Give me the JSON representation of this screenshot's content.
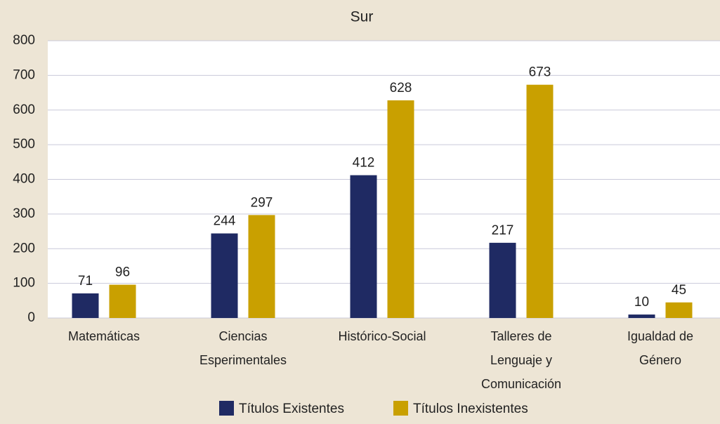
{
  "chart_data": {
    "type": "bar",
    "title": "Sur",
    "categories": [
      "Matemáticas",
      "Ciencias Esperimentales",
      "Histórico-Social",
      "Talleres de Lenguaje y Comunicación",
      "Igualdad de Género"
    ],
    "series": [
      {
        "name": "Títulos Existentes",
        "color": "#1f2a63",
        "values": [
          71,
          244,
          412,
          217,
          10
        ]
      },
      {
        "name": "Títulos Inexistentes",
        "color": "#c9a000",
        "values": [
          96,
          297,
          628,
          673,
          45
        ]
      }
    ],
    "ylim": [
      0,
      800
    ],
    "yticks": [
      0,
      100,
      200,
      300,
      400,
      500,
      600,
      700,
      800
    ],
    "grid": true,
    "legend": "bottom"
  }
}
